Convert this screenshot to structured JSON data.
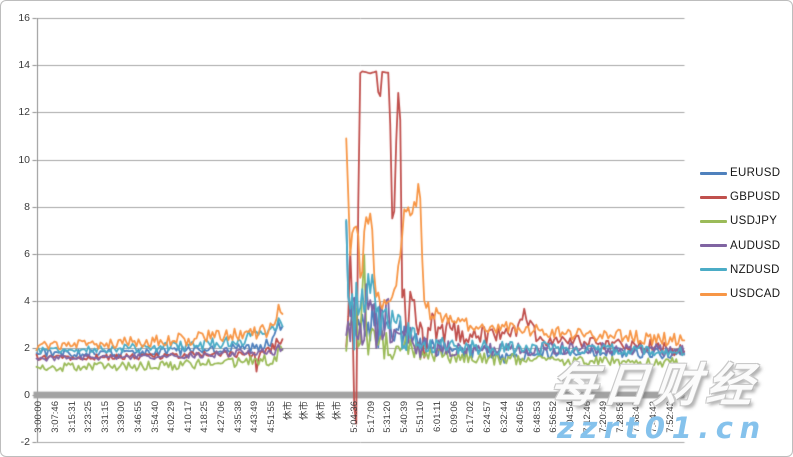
{
  "watermark": {
    "cn": "每日财经",
    "site": "zzrt01.cn"
  },
  "chart_data": {
    "type": "line",
    "title": "",
    "xlabel": "",
    "ylabel": "",
    "grid": true,
    "legend_position": "right",
    "ylim": [
      -2,
      16
    ],
    "yticks": [
      16,
      14,
      12,
      10,
      8,
      6,
      4,
      2,
      0,
      -2
    ],
    "closed_market_label": "休市",
    "x_tick_labels": [
      "3:00:00",
      "3:07:46",
      "3:15:31",
      "3:23:25",
      "3:31:15",
      "3:39:00",
      "3:46:55",
      "3:54:40",
      "4:02:29",
      "4:10:17",
      "4:18:25",
      "4:27:06",
      "4:35:38",
      "4:43:49",
      "4:51:55",
      "休市",
      "休市",
      "休市",
      "休市",
      "5:04:36",
      "5:17:09",
      "5:31:20",
      "5:40:39",
      "5:51:10",
      "6:01:11",
      "6:09:06",
      "6:17:02",
      "6:24:57",
      "6:32:44",
      "6:40:56",
      "6:48:53",
      "6:56:52",
      "7:04:54",
      "7:12:46",
      "7:20:49",
      "7:28:58",
      "7:36:49",
      "7:44:43",
      "7:52:42"
    ],
    "axis_colors": {
      "gridline": "#a6a6a6",
      "axis_line": "#8c8c8c",
      "zero_bar": "#a2a2a2",
      "tick_text": "#3f3f3f"
    },
    "series": [
      {
        "name": "EURUSD",
        "color": "#4F81BD",
        "segments": [
          [
            [
              0,
              1.8,
              0.18
            ],
            [
              0.08,
              1.75,
              0.18
            ],
            [
              0.16,
              1.8,
              0.18
            ],
            [
              0.24,
              1.9,
              0.2
            ],
            [
              0.3,
              2.0,
              0.2
            ],
            [
              0.34,
              2.0,
              0.2
            ],
            [
              0.36,
              2.2,
              0.25
            ],
            [
              0.374,
              2.9,
              0.25
            ],
            [
              0.38,
              3.0,
              0.2
            ]
          ],
          [
            [
              0.478,
              7.4,
              0.2
            ],
            [
              0.482,
              3.0,
              0.6
            ],
            [
              0.487,
              4.0,
              1.2
            ],
            [
              0.495,
              2.5,
              1.0
            ],
            [
              0.505,
              3.5,
              1.2
            ],
            [
              0.52,
              2.8,
              1.0
            ],
            [
              0.535,
              3.2,
              1.0
            ],
            [
              0.55,
              2.3,
              0.7
            ],
            [
              0.57,
              2.6,
              0.7
            ],
            [
              0.59,
              2.2,
              0.5
            ],
            [
              0.61,
              2.0,
              0.4
            ],
            [
              0.65,
              1.95,
              0.3
            ],
            [
              0.7,
              1.8,
              0.3
            ],
            [
              0.73,
              1.5,
              0.3
            ],
            [
              0.78,
              1.75,
              0.25
            ],
            [
              0.82,
              1.85,
              0.22
            ],
            [
              1,
              1.75,
              0.22
            ]
          ]
        ]
      },
      {
        "name": "GBPUSD",
        "color": "#C0504D",
        "segments": [
          [
            [
              0,
              1.6,
              0.12
            ],
            [
              0.1,
              1.6,
              0.12
            ],
            [
              0.2,
              1.65,
              0.13
            ],
            [
              0.3,
              1.75,
              0.15
            ],
            [
              0.337,
              1.7,
              0.12
            ],
            [
              0.34,
              0.85,
              0.04
            ],
            [
              0.343,
              1.7,
              0.12
            ],
            [
              0.36,
              1.9,
              0.2
            ],
            [
              0.374,
              2.3,
              0.25
            ],
            [
              0.38,
              2.4,
              0.2
            ]
          ],
          [
            [
              0.478,
              2.2,
              0.6
            ],
            [
              0.486,
              6.0,
              1.2
            ],
            [
              0.489,
              2.0,
              0.3
            ],
            [
              0.4907,
              -1.25,
              0.05
            ],
            [
              0.4946,
              -1.25,
              0.05
            ],
            [
              0.4977,
              13.7,
              0.04
            ],
            [
              0.527,
              13.7,
              0.04
            ],
            [
              0.529,
              9.5,
              0.3
            ],
            [
              0.531,
              13.7,
              0.04
            ],
            [
              0.5448,
              13.7,
              0.04
            ],
            [
              0.548,
              6.5,
              0.8
            ],
            [
              0.552,
              8.0,
              0.5
            ],
            [
              0.5556,
              11.0,
              0.3
            ],
            [
              0.5587,
              13.0,
              0.1
            ],
            [
              0.5617,
              11.8,
              0.3
            ],
            [
              0.564,
              5.0,
              0.8
            ],
            [
              0.57,
              3.0,
              1.0
            ],
            [
              0.58,
              4.5,
              1.2
            ],
            [
              0.59,
              2.5,
              0.8
            ],
            [
              0.6,
              2.0,
              0.6
            ],
            [
              0.61,
              3.2,
              0.8
            ],
            [
              0.625,
              2.8,
              0.6
            ],
            [
              0.648,
              2.6,
              0.5
            ],
            [
              0.7,
              2.5,
              0.4
            ],
            [
              0.745,
              2.8,
              0.3
            ],
            [
              0.752,
              3.7,
              0.15
            ],
            [
              0.758,
              2.6,
              0.3
            ],
            [
              0.764,
              3.3,
              0.15
            ],
            [
              0.77,
              2.5,
              0.35
            ],
            [
              0.8,
              2.3,
              0.3
            ],
            [
              0.87,
              2.2,
              0.25
            ],
            [
              0.95,
              2.1,
              0.25
            ],
            [
              1,
              1.9,
              0.3
            ]
          ]
        ]
      },
      {
        "name": "USDJPY",
        "color": "#9BBB59",
        "segments": [
          [
            [
              0,
              1.2,
              0.2
            ],
            [
              0.1,
              1.2,
              0.2
            ],
            [
              0.2,
              1.25,
              0.2
            ],
            [
              0.3,
              1.4,
              0.22
            ],
            [
              0.36,
              1.5,
              0.25
            ],
            [
              0.374,
              1.8,
              0.3
            ],
            [
              0.38,
              2.0,
              0.25
            ]
          ],
          [
            [
              0.478,
              2.2,
              0.6
            ],
            [
              0.49,
              3.2,
              1.0
            ],
            [
              0.5,
              2.2,
              0.8
            ],
            [
              0.506,
              6.3,
              0.3
            ],
            [
              0.509,
              2.0,
              0.8
            ],
            [
              0.52,
              2.8,
              1.0
            ],
            [
              0.535,
              2.2,
              0.8
            ],
            [
              0.55,
              1.9,
              0.5
            ],
            [
              0.57,
              2.1,
              0.5
            ],
            [
              0.6,
              1.7,
              0.35
            ],
            [
              0.65,
              1.6,
              0.3
            ],
            [
              0.75,
              1.5,
              0.25
            ],
            [
              0.88,
              1.45,
              0.22
            ],
            [
              1,
              1.35,
              0.22
            ]
          ]
        ]
      },
      {
        "name": "AUDUSD",
        "color": "#8064A2",
        "segments": [
          [
            [
              0,
              1.55,
              0.12
            ],
            [
              0.1,
              1.6,
              0.12
            ],
            [
              0.2,
              1.65,
              0.13
            ],
            [
              0.3,
              1.75,
              0.18
            ],
            [
              0.36,
              1.8,
              0.2
            ],
            [
              0.374,
              2.0,
              0.2
            ],
            [
              0.38,
              2.1,
              0.2
            ]
          ],
          [
            [
              0.478,
              2.5,
              0.8
            ],
            [
              0.49,
              3.5,
              1.3
            ],
            [
              0.5,
              2.5,
              1.0
            ],
            [
              0.512,
              4.2,
              1.0
            ],
            [
              0.525,
              2.8,
              1.0
            ],
            [
              0.54,
              3.5,
              1.0
            ],
            [
              0.555,
              2.2,
              0.7
            ],
            [
              0.57,
              2.8,
              0.7
            ],
            [
              0.59,
              2.1,
              0.5
            ],
            [
              0.61,
              2.0,
              0.4
            ],
            [
              0.66,
              1.95,
              0.3
            ],
            [
              0.75,
              1.95,
              0.28
            ],
            [
              0.85,
              2.0,
              0.25
            ],
            [
              1,
              1.9,
              0.25
            ]
          ]
        ]
      },
      {
        "name": "NZDUSD",
        "color": "#4BACC6",
        "segments": [
          [
            [
              0,
              1.9,
              0.15
            ],
            [
              0.1,
              1.95,
              0.16
            ],
            [
              0.2,
              2.05,
              0.2
            ],
            [
              0.27,
              2.2,
              0.3
            ],
            [
              0.32,
              2.4,
              0.3
            ],
            [
              0.36,
              2.5,
              0.3
            ],
            [
              0.374,
              3.0,
              0.3
            ],
            [
              0.38,
              3.1,
              0.25
            ]
          ],
          [
            [
              0.478,
              7.6,
              0.3
            ],
            [
              0.483,
              2.5,
              0.8
            ],
            [
              0.486,
              6.2,
              0.5
            ],
            [
              0.489,
              2.0,
              0.8
            ],
            [
              0.495,
              4.5,
              1.5
            ],
            [
              0.505,
              3.0,
              1.2
            ],
            [
              0.515,
              4.5,
              1.3
            ],
            [
              0.525,
              2.8,
              1.0
            ],
            [
              0.535,
              3.8,
              1.0
            ],
            [
              0.545,
              2.5,
              0.8
            ],
            [
              0.555,
              3.2,
              0.8
            ],
            [
              0.565,
              2.4,
              0.6
            ],
            [
              0.58,
              2.6,
              0.6
            ],
            [
              0.6,
              2.2,
              0.5
            ],
            [
              0.63,
              2.1,
              0.4
            ],
            [
              0.67,
              2.0,
              0.35
            ],
            [
              0.75,
              2.0,
              0.3
            ],
            [
              0.85,
              1.95,
              0.25
            ],
            [
              1,
              1.85,
              0.22
            ]
          ]
        ]
      },
      {
        "name": "USDCAD",
        "color": "#F79646",
        "segments": [
          [
            [
              0,
              2.05,
              0.2
            ],
            [
              0.08,
              2.15,
              0.2
            ],
            [
              0.16,
              2.25,
              0.25
            ],
            [
              0.24,
              2.4,
              0.3
            ],
            [
              0.3,
              2.5,
              0.3
            ],
            [
              0.34,
              2.6,
              0.3
            ],
            [
              0.365,
              2.9,
              0.35
            ],
            [
              0.374,
              3.6,
              0.3
            ],
            [
              0.38,
              3.5,
              0.25
            ]
          ],
          [
            [
              0.478,
              10.6,
              0.3
            ],
            [
              0.482,
              8.0,
              1.0
            ],
            [
              0.486,
              6.0,
              1.2
            ],
            [
              0.492,
              6.8,
              1.0
            ],
            [
              0.5,
              5.2,
              1.0
            ],
            [
              0.508,
              7.2,
              0.7
            ],
            [
              0.5155,
              7.4,
              0.5
            ],
            [
              0.522,
              4.8,
              1.0
            ],
            [
              0.53,
              4.5,
              0.8
            ],
            [
              0.54,
              4.0,
              0.6
            ],
            [
              0.55,
              4.3,
              0.6
            ],
            [
              0.558,
              5.5,
              0.6
            ],
            [
              0.568,
              7.8,
              0.4
            ],
            [
              0.578,
              7.9,
              0.35
            ],
            [
              0.5864,
              8.2,
              0.3
            ],
            [
              0.591,
              9.3,
              0.1
            ],
            [
              0.594,
              6.0,
              0.8
            ],
            [
              0.6,
              3.6,
              0.5
            ],
            [
              0.61,
              3.4,
              0.4
            ],
            [
              0.63,
              3.2,
              0.35
            ],
            [
              0.66,
              3.0,
              0.3
            ],
            [
              0.72,
              2.85,
              0.3
            ],
            [
              0.8,
              2.65,
              0.28
            ],
            [
              0.9,
              2.5,
              0.28
            ],
            [
              1,
              2.3,
              0.3
            ]
          ]
        ]
      }
    ]
  }
}
